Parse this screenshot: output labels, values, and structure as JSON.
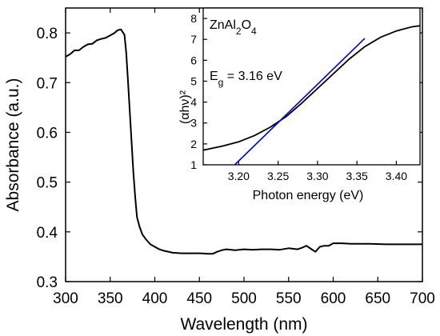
{
  "chart_data": [
    {
      "type": "line",
      "title": "",
      "xlabel": "Wavelength (nm)",
      "ylabel": "Absorbance (a.u.)",
      "xlim": [
        300,
        700
      ],
      "ylim": [
        0.3,
        0.85
      ],
      "xticks": [
        300,
        350,
        400,
        450,
        500,
        550,
        600,
        650,
        700
      ],
      "xtick_labels": [
        "300",
        "350",
        "400",
        "450",
        "500",
        "550",
        "600",
        "650",
        "700"
      ],
      "yticks": [
        0.3,
        0.4,
        0.5,
        0.6,
        0.7,
        0.8
      ],
      "ytick_labels": [
        "0.3",
        "0.4",
        "0.5",
        "0.6",
        "0.7",
        "0.8"
      ],
      "grid": false,
      "series": [
        {
          "color": "#000000",
          "x": [
            300,
            305,
            310,
            315,
            320,
            325,
            330,
            335,
            340,
            345,
            350,
            355,
            358,
            362,
            366,
            368,
            370,
            372,
            374,
            376,
            378,
            380,
            383,
            386,
            390,
            395,
            400,
            405,
            410,
            420,
            430,
            440,
            450,
            460,
            465,
            470,
            475,
            480,
            490,
            500,
            510,
            520,
            530,
            540,
            550,
            560,
            565,
            570,
            575,
            580,
            585,
            590,
            595,
            600,
            610,
            620,
            640,
            660,
            680,
            700
          ],
          "y": [
            0.752,
            0.757,
            0.765,
            0.765,
            0.772,
            0.777,
            0.778,
            0.785,
            0.788,
            0.79,
            0.795,
            0.8,
            0.805,
            0.807,
            0.796,
            0.76,
            0.7,
            0.64,
            0.58,
            0.52,
            0.47,
            0.43,
            0.41,
            0.395,
            0.385,
            0.375,
            0.37,
            0.365,
            0.362,
            0.358,
            0.357,
            0.357,
            0.357,
            0.356,
            0.356,
            0.36,
            0.363,
            0.365,
            0.363,
            0.365,
            0.364,
            0.365,
            0.365,
            0.364,
            0.367,
            0.365,
            0.368,
            0.372,
            0.366,
            0.36,
            0.37,
            0.372,
            0.372,
            0.377,
            0.377,
            0.376,
            0.376,
            0.375,
            0.375,
            0.375
          ]
        }
      ]
    },
    {
      "type": "line",
      "title": "",
      "xlabel": "Photon energy (eV)",
      "ylabel": "(αhν)²",
      "xlim": [
        3.155,
        3.43
      ],
      "ylim": [
        1,
        8.5
      ],
      "xticks": [
        3.2,
        3.25,
        3.3,
        3.35,
        3.4
      ],
      "xtick_labels": [
        "3.20",
        "3.25",
        "3.30",
        "3.35",
        "3.40"
      ],
      "yticks": [
        1,
        2,
        3,
        4,
        5,
        6,
        7,
        8
      ],
      "ytick_labels": [
        "1",
        "2",
        "3",
        "4",
        "5",
        "6",
        "7",
        "8"
      ],
      "grid": false,
      "annotations": {
        "material": "ZnAl2O4",
        "bandgap": "Eg = 3.16 eV"
      },
      "series": [
        {
          "color": "#000000",
          "x": [
            3.155,
            3.18,
            3.2,
            3.22,
            3.24,
            3.26,
            3.28,
            3.3,
            3.32,
            3.34,
            3.36,
            3.38,
            3.4,
            3.42,
            3.43
          ],
          "y": [
            1.7,
            1.9,
            2.1,
            2.4,
            2.8,
            3.3,
            3.95,
            4.65,
            5.35,
            6.05,
            6.65,
            7.1,
            7.4,
            7.6,
            7.65
          ]
        },
        {
          "color": "#0000cc",
          "x": [
            3.195,
            3.36
          ],
          "y": [
            1.0,
            7.05
          ]
        }
      ]
    }
  ]
}
